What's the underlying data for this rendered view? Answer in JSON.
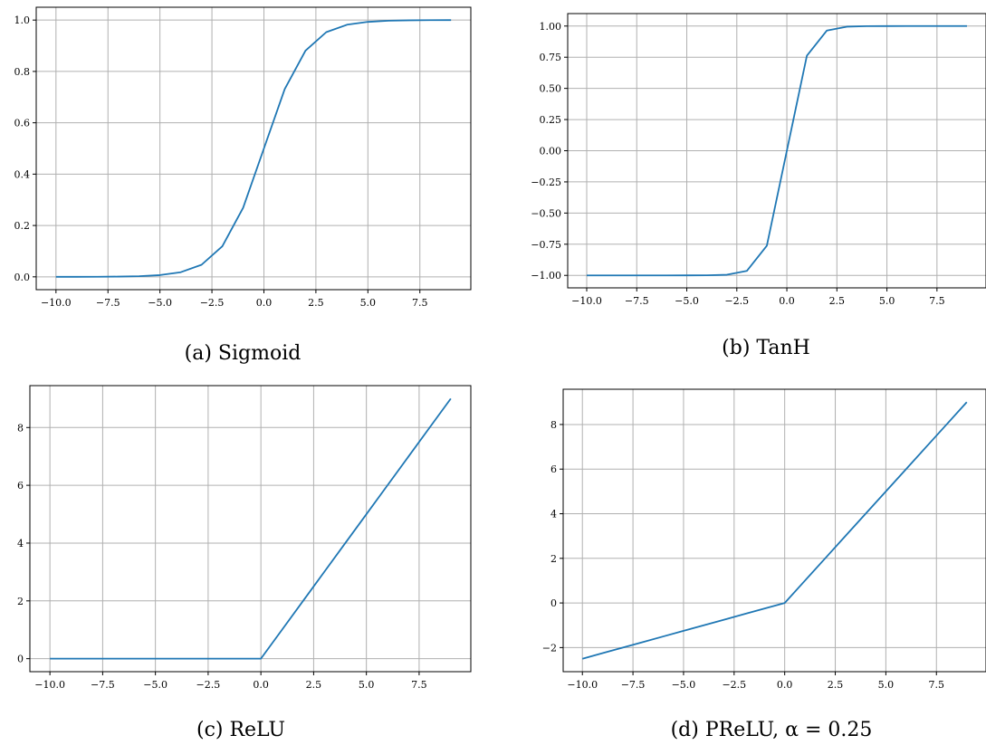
{
  "colors": {
    "series": "#1f77b4",
    "grid": "#b0b0b0"
  },
  "chart_data": [
    {
      "type": "line",
      "caption": "(a) Sigmoid",
      "grid": true,
      "xlim": [
        -10.95,
        9.95
      ],
      "ylim": [
        -0.05,
        1.05
      ],
      "xticks": [
        -10.0,
        -7.5,
        -5.0,
        -2.5,
        0.0,
        2.5,
        5.0,
        7.5
      ],
      "xtick_labels": [
        "−10.0",
        "−7.5",
        "−5.0",
        "−2.5",
        "0.0",
        "2.5",
        "5.0",
        "7.5"
      ],
      "yticks": [
        0.0,
        0.2,
        0.4,
        0.6,
        0.8,
        1.0
      ],
      "ytick_labels": [
        "0.0",
        "0.2",
        "0.4",
        "0.6",
        "0.8",
        "1.0"
      ],
      "x": [
        -10,
        -9,
        -8,
        -7,
        -6,
        -5,
        -4,
        -3,
        -2,
        -1,
        0,
        1,
        2,
        3,
        4,
        5,
        6,
        7,
        8,
        9
      ],
      "y": [
        5e-05,
        0.0001,
        0.0003,
        0.0009,
        0.0025,
        0.0067,
        0.018,
        0.047,
        0.119,
        0.269,
        0.5,
        0.731,
        0.881,
        0.953,
        0.982,
        0.993,
        0.9975,
        0.9991,
        0.9997,
        0.9999
      ]
    },
    {
      "type": "line",
      "caption": "(b) TanH",
      "grid": true,
      "xlim": [
        -10.95,
        9.95
      ],
      "ylim": [
        -1.1,
        1.1
      ],
      "xticks": [
        -10.0,
        -7.5,
        -5.0,
        -2.5,
        0.0,
        2.5,
        5.0,
        7.5
      ],
      "xtick_labels": [
        "−10.0",
        "−7.5",
        "−5.0",
        "−2.5",
        "0.0",
        "2.5",
        "5.0",
        "7.5"
      ],
      "yticks": [
        -1.0,
        -0.75,
        -0.5,
        -0.25,
        0.0,
        0.25,
        0.5,
        0.75,
        1.0
      ],
      "ytick_labels": [
        "−1.00",
        "−0.75",
        "−0.50",
        "−0.25",
        "0.00",
        "0.25",
        "0.50",
        "0.75",
        "1.00"
      ],
      "x": [
        -10,
        -9,
        -8,
        -7,
        -6,
        -5,
        -4,
        -3,
        -2,
        -1,
        0,
        1,
        2,
        3,
        4,
        5,
        6,
        7,
        8,
        9
      ],
      "y": [
        -1.0,
        -1.0,
        -1.0,
        -1.0,
        -1.0,
        -0.9999,
        -0.9993,
        -0.995,
        -0.964,
        -0.762,
        0.0,
        0.762,
        0.964,
        0.995,
        0.9993,
        0.9999,
        1.0,
        1.0,
        1.0,
        1.0
      ]
    },
    {
      "type": "line",
      "caption": "(c) ReLU",
      "grid": true,
      "xlim": [
        -10.95,
        9.95
      ],
      "ylim": [
        -0.45,
        9.45
      ],
      "xticks": [
        -10.0,
        -7.5,
        -5.0,
        -2.5,
        0.0,
        2.5,
        5.0,
        7.5
      ],
      "xtick_labels": [
        "−10.0",
        "−7.5",
        "−5.0",
        "−2.5",
        "0.0",
        "2.5",
        "5.0",
        "7.5"
      ],
      "yticks": [
        0,
        2,
        4,
        6,
        8
      ],
      "ytick_labels": [
        "0",
        "2",
        "4",
        "6",
        "8"
      ],
      "x": [
        -10,
        -9,
        -8,
        -7,
        -6,
        -5,
        -4,
        -3,
        -2,
        -1,
        0,
        1,
        2,
        3,
        4,
        5,
        6,
        7,
        8,
        9
      ],
      "y": [
        0,
        0,
        0,
        0,
        0,
        0,
        0,
        0,
        0,
        0,
        0,
        1,
        2,
        3,
        4,
        5,
        6,
        7,
        8,
        9
      ]
    },
    {
      "type": "line",
      "caption": "(d) PReLU, α = 0.25",
      "grid": true,
      "xlim": [
        -10.95,
        9.95
      ],
      "ylim": [
        -3.08,
        9.58
      ],
      "xticks": [
        -10.0,
        -7.5,
        -5.0,
        -2.5,
        0.0,
        2.5,
        5.0,
        7.5
      ],
      "xtick_labels": [
        "−10.0",
        "−7.5",
        "−5.0",
        "−2.5",
        "0.0",
        "2.5",
        "5.0",
        "7.5"
      ],
      "yticks": [
        -2,
        0,
        2,
        4,
        6,
        8
      ],
      "ytick_labels": [
        "−2",
        "0",
        "2",
        "4",
        "6",
        "8"
      ],
      "x": [
        -10,
        -9,
        -8,
        -7,
        -6,
        -5,
        -4,
        -3,
        -2,
        -1,
        0,
        1,
        2,
        3,
        4,
        5,
        6,
        7,
        8,
        9
      ],
      "y": [
        -2.5,
        -2.25,
        -2.0,
        -1.75,
        -1.5,
        -1.25,
        -1.0,
        -0.75,
        -0.5,
        -0.25,
        0,
        1,
        2,
        3,
        4,
        5,
        6,
        7,
        8,
        9
      ]
    }
  ]
}
